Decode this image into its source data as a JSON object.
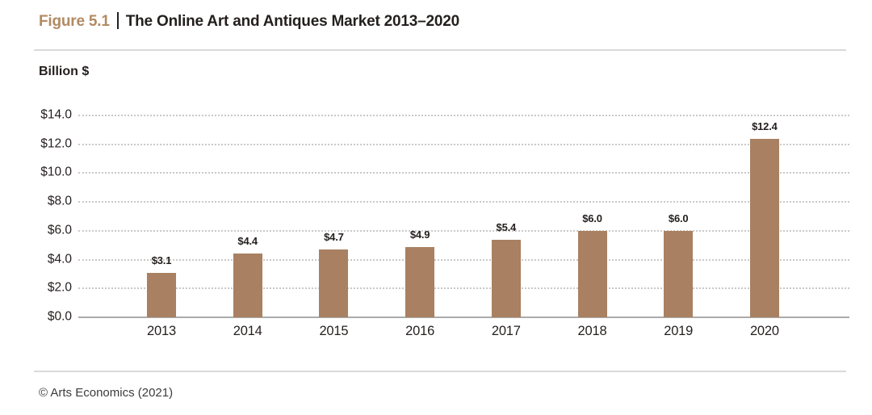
{
  "figure": {
    "label": "Figure 5.1",
    "separator": "|",
    "title": "The Online Art and Antiques Market 2013–2020"
  },
  "chart_data": {
    "type": "bar",
    "title": "The Online Art and Antiques Market 2013–2020",
    "unit_label": "Billion $",
    "categories": [
      "2013",
      "2014",
      "2015",
      "2016",
      "2017",
      "2018",
      "2019",
      "2020"
    ],
    "values": [
      3.1,
      4.4,
      4.7,
      4.9,
      5.4,
      6.0,
      6.0,
      12.4
    ],
    "value_labels": [
      "$3.1",
      "$4.4",
      "$4.7",
      "$4.9",
      "$5.4",
      "$6.0",
      "$6.0",
      "$12.4"
    ],
    "xlabel": "",
    "ylabel": "Billion $",
    "ylim": [
      0,
      14
    ],
    "ytick_values": [
      0,
      2,
      4,
      6,
      8,
      10,
      12,
      14
    ],
    "ytick_labels": [
      "$0.0",
      "$2.0",
      "$4.0",
      "$6.0",
      "$8.0",
      "$10.0",
      "$12.0",
      "$14.0"
    ],
    "grid": "horizontal-dotted",
    "legend": "none",
    "bar_color": "#a98061",
    "accent_color": "#b28a63"
  },
  "footer": {
    "credit": "© Arts Economics (2021)"
  }
}
